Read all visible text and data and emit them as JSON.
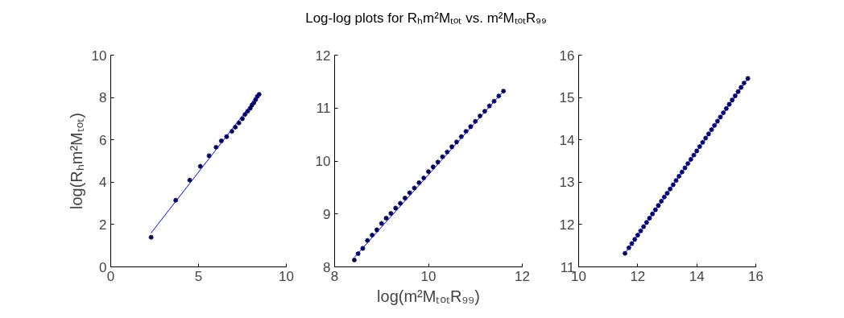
{
  "chart_data": [
    {
      "type": "scatter",
      "ylabel": "log(Rₕm²Mₜₒₜ)",
      "xlim": [
        0,
        10
      ],
      "ylim": [
        0,
        10
      ],
      "xticks": [
        0,
        5,
        10
      ],
      "yticks": [
        0,
        2,
        4,
        6,
        8,
        10
      ],
      "grid": false,
      "series": [
        {
          "marker": "cross",
          "color": "#000048",
          "x": [
            2.3,
            3.7,
            4.5,
            5.1,
            5.6,
            6.0,
            6.3,
            6.6,
            6.9,
            7.1,
            7.3,
            7.5,
            7.65,
            7.8,
            7.95,
            8.05,
            8.15,
            8.25,
            8.35,
            8.45
          ],
          "values": [
            1.4,
            3.15,
            4.1,
            4.75,
            5.25,
            5.65,
            5.95,
            6.15,
            6.4,
            6.6,
            6.8,
            7.0,
            7.2,
            7.35,
            7.5,
            7.65,
            7.75,
            7.9,
            8.05,
            8.15
          ]
        },
        {
          "type": "line",
          "marker": "none",
          "color": "#0000ff",
          "x": [
            2.3,
            8.45
          ],
          "values": [
            1.6,
            8.15
          ]
        }
      ]
    },
    {
      "type": "scatter",
      "title": "Log-log plots for Rₕm²Mₜₒₜ vs. m²MₜₒₜR₉₉",
      "xlabel": "log(m²MₜₒₜR₉₉)",
      "xlim": [
        8,
        12
      ],
      "ylim": [
        8,
        12
      ],
      "xticks": [
        8,
        10,
        12
      ],
      "yticks": [
        8,
        9,
        10,
        11,
        12
      ],
      "grid": false,
      "series": [
        {
          "marker": "cross",
          "color": "#000048",
          "x": [
            8.42,
            8.5,
            8.6,
            8.7,
            8.8,
            8.9,
            9.0,
            9.1,
            9.2,
            9.3,
            9.4,
            9.5,
            9.6,
            9.7,
            9.8,
            9.9,
            10.0,
            10.1,
            10.2,
            10.3,
            10.4,
            10.5,
            10.6,
            10.7,
            10.8,
            10.9,
            11.0,
            11.1,
            11.2,
            11.3,
            11.4,
            11.5,
            11.6
          ],
          "values": [
            8.13,
            8.25,
            8.35,
            8.5,
            8.6,
            8.7,
            8.82,
            8.92,
            9.01,
            9.11,
            9.2,
            9.3,
            9.4,
            9.49,
            9.59,
            9.68,
            9.8,
            9.89,
            9.98,
            10.08,
            10.17,
            10.27,
            10.36,
            10.46,
            10.56,
            10.65,
            10.75,
            10.85,
            10.94,
            11.04,
            11.13,
            11.23,
            11.32
          ]
        },
        {
          "type": "line",
          "marker": "none",
          "color": "#0000ff",
          "x": [
            8.42,
            11.6
          ],
          "values": [
            8.18,
            11.32
          ]
        }
      ]
    },
    {
      "type": "scatter",
      "xlim": [
        10,
        16
      ],
      "ylim": [
        11,
        16
      ],
      "xticks": [
        10,
        12,
        14,
        16
      ],
      "yticks": [
        11,
        12,
        13,
        14,
        15,
        16
      ],
      "grid": false,
      "series": [
        {
          "marker": "cross",
          "color": "#000048",
          "x": [
            11.57,
            11.7,
            11.8,
            11.9,
            12.0,
            12.1,
            12.2,
            12.3,
            12.4,
            12.5,
            12.6,
            12.7,
            12.8,
            12.9,
            13.0,
            13.1,
            13.2,
            13.3,
            13.4,
            13.5,
            13.6,
            13.7,
            13.8,
            13.9,
            14.0,
            14.1,
            14.2,
            14.3,
            14.4,
            14.5,
            14.6,
            14.7,
            14.8,
            14.9,
            15.0,
            15.1,
            15.2,
            15.3,
            15.4,
            15.5,
            15.6,
            15.73
          ],
          "values": [
            11.32,
            11.45,
            11.55,
            11.65,
            11.75,
            11.85,
            11.95,
            12.05,
            12.15,
            12.25,
            12.35,
            12.45,
            12.55,
            12.65,
            12.74,
            12.84,
            12.94,
            13.04,
            13.14,
            13.24,
            13.34,
            13.44,
            13.54,
            13.64,
            13.74,
            13.84,
            13.94,
            14.04,
            14.14,
            14.24,
            14.34,
            14.44,
            14.54,
            14.64,
            14.74,
            14.84,
            14.94,
            15.04,
            15.14,
            15.24,
            15.34,
            15.45
          ]
        },
        {
          "type": "line",
          "marker": "none",
          "color": "#0000ff",
          "x": [
            11.57,
            15.73
          ],
          "values": [
            11.32,
            15.45
          ]
        }
      ]
    }
  ]
}
